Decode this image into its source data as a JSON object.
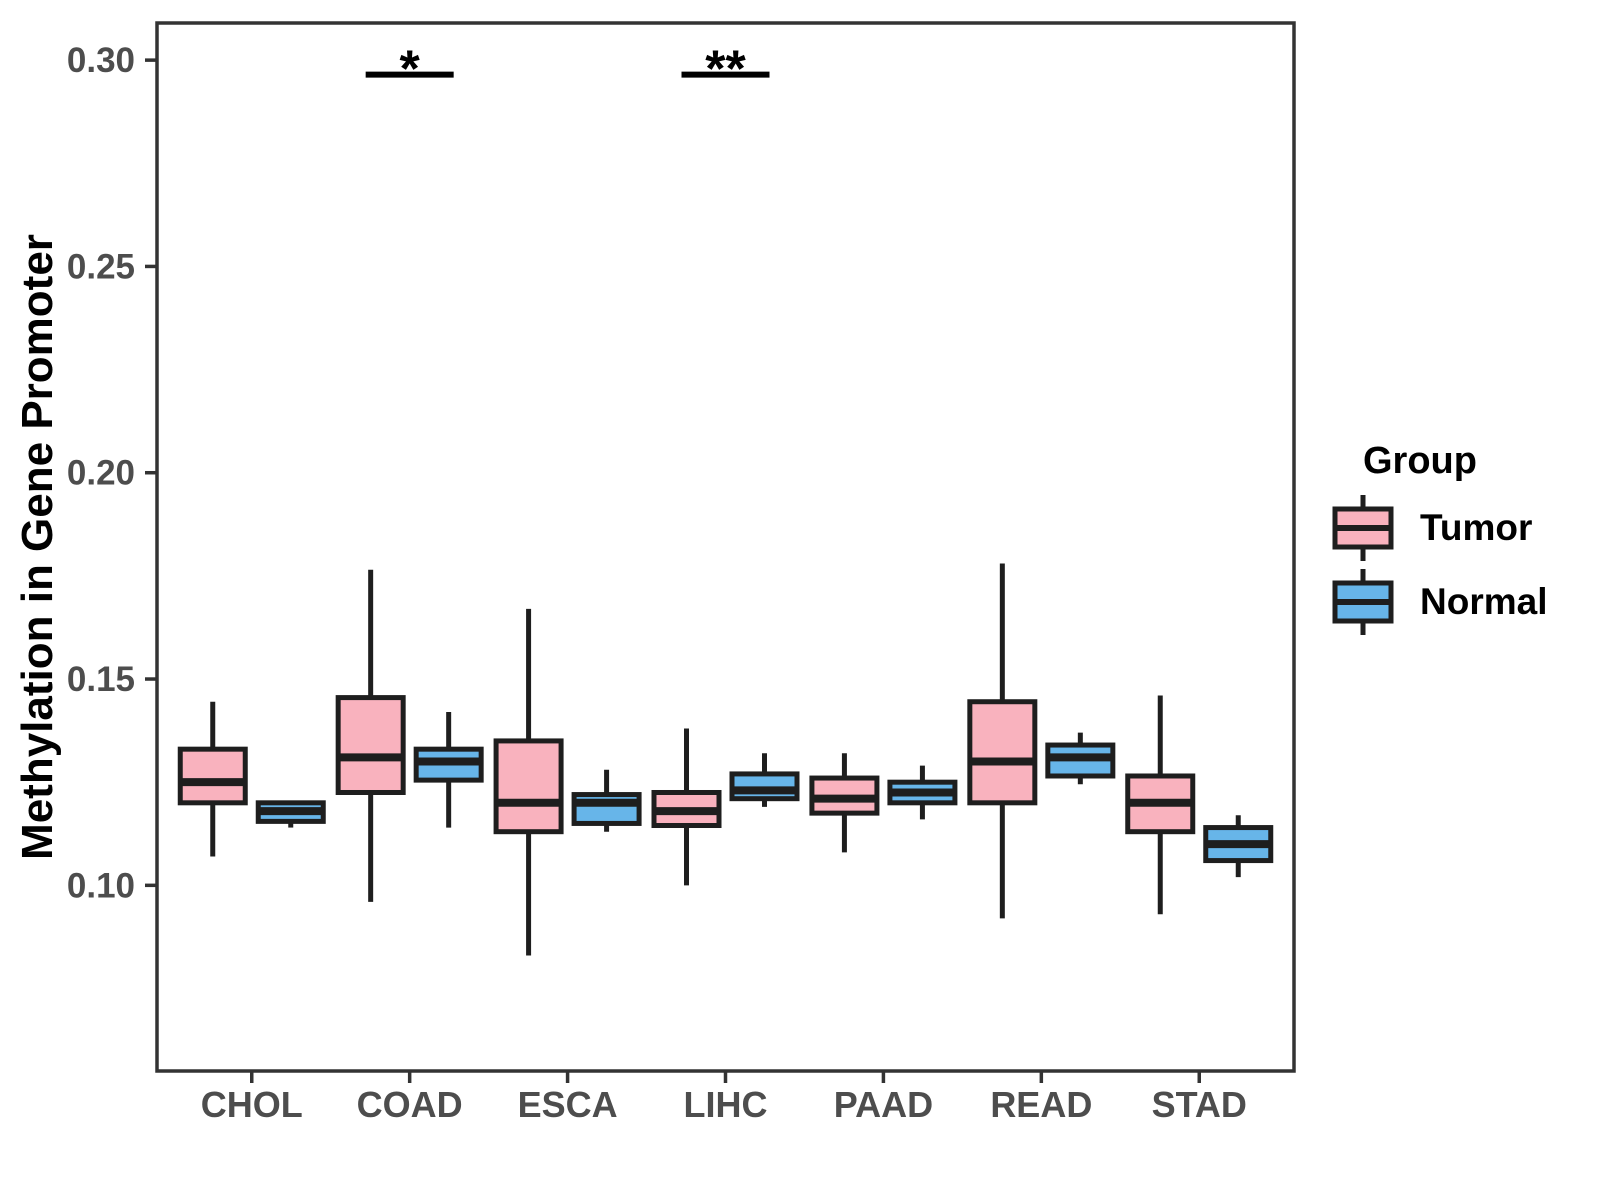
{
  "chart_data": {
    "type": "boxplot",
    "title": "",
    "xlabel": "",
    "ylabel": "Methylation in Gene Promoter",
    "categories": [
      "CHOL",
      "COAD",
      "ESCA",
      "LIHC",
      "PAAD",
      "READ",
      "STAD"
    ],
    "y_tick_values": [
      0.1,
      0.15,
      0.2,
      0.25,
      0.3
    ],
    "y_tick_labels": [
      "0.10",
      "0.15",
      "0.20",
      "0.25",
      "0.30"
    ],
    "ylim": [
      0.055,
      0.309
    ],
    "grid": "off",
    "legend_position": "right",
    "box_format": [
      "whisker_low",
      "q1",
      "median",
      "q3",
      "whisker_high"
    ],
    "series": [
      {
        "name": "Tumor",
        "color": "#F9B2BE",
        "values": [
          [
            0.107,
            0.12,
            0.125,
            0.133,
            0.1445
          ],
          [
            0.096,
            0.1225,
            0.131,
            0.1455,
            0.1765
          ],
          [
            0.083,
            0.113,
            0.12,
            0.135,
            0.167
          ],
          [
            0.1,
            0.1145,
            0.118,
            0.1225,
            0.138
          ],
          [
            0.108,
            0.1175,
            0.121,
            0.126,
            0.132
          ],
          [
            0.092,
            0.12,
            0.13,
            0.1445,
            0.178
          ],
          [
            0.093,
            0.113,
            0.12,
            0.1265,
            0.146
          ]
        ]
      },
      {
        "name": "Normal",
        "color": "#67B5E9",
        "values": [
          [
            0.114,
            0.1155,
            0.118,
            0.12,
            0.1205
          ],
          [
            0.114,
            0.1255,
            0.13,
            0.133,
            0.142
          ],
          [
            0.113,
            0.115,
            0.12,
            0.122,
            0.128
          ],
          [
            0.119,
            0.121,
            0.123,
            0.127,
            0.132
          ],
          [
            0.116,
            0.12,
            0.1225,
            0.125,
            0.129
          ],
          [
            0.1245,
            0.1265,
            0.131,
            0.134,
            0.137
          ],
          [
            0.102,
            0.106,
            0.11,
            0.114,
            0.117
          ]
        ]
      }
    ],
    "annotations": [
      {
        "category": "COAD",
        "label": "*",
        "bar_y": 0.2965
      },
      {
        "category": "LIHC",
        "label": "**",
        "bar_y": 0.2965
      }
    ],
    "colors": {
      "stroke": "#1E1E1E",
      "axis_text": "#4D4D4D",
      "panel_border": "#333333"
    }
  },
  "legend": {
    "title": "Group",
    "items": [
      {
        "label": "Tumor"
      },
      {
        "label": "Normal"
      }
    ]
  }
}
